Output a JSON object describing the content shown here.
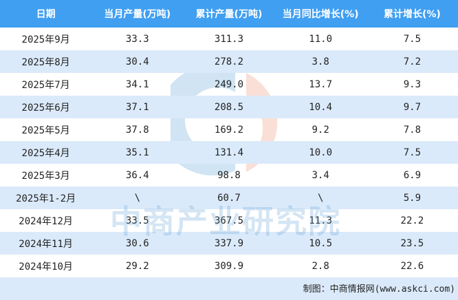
{
  "chart_data": {
    "type": "table",
    "columns": [
      "日期",
      "当月产量(万吨)",
      "累计产量(万吨)",
      "当月同比增长(%)",
      "累计增长(%)"
    ],
    "rows": [
      [
        "2025年9月",
        "33.3",
        "311.3",
        "11.0",
        "7.5"
      ],
      [
        "2025年8月",
        "30.4",
        "278.2",
        "3.8",
        "7.2"
      ],
      [
        "2025年7月",
        "34.1",
        "249.0",
        "13.7",
        "9.3"
      ],
      [
        "2025年6月",
        "37.1",
        "208.5",
        "10.4",
        "9.7"
      ],
      [
        "2025年5月",
        "37.8",
        "169.2",
        "9.2",
        "7.8"
      ],
      [
        "2025年4月",
        "35.1",
        "131.4",
        "10.0",
        "7.5"
      ],
      [
        "2025年3月",
        "36.4",
        "98.8",
        "3.4",
        "6.9"
      ],
      [
        "2025年1-2月",
        "\\",
        "60.7",
        "\\",
        "5.9"
      ],
      [
        "2024年12月",
        "33.5",
        "367.5",
        "11.3",
        "22.2"
      ],
      [
        "2024年11月",
        "30.6",
        "337.9",
        "10.5",
        "23.5"
      ],
      [
        "2024年10月",
        "29.2",
        "309.9",
        "2.8",
        "22.6"
      ]
    ]
  },
  "footer": {
    "source": "制图：中商情报网(www.askci.com)"
  },
  "watermark": {
    "text": "中商产业研究院"
  },
  "colors": {
    "header": "#409ff1",
    "alt_row": "#dbeafa"
  }
}
